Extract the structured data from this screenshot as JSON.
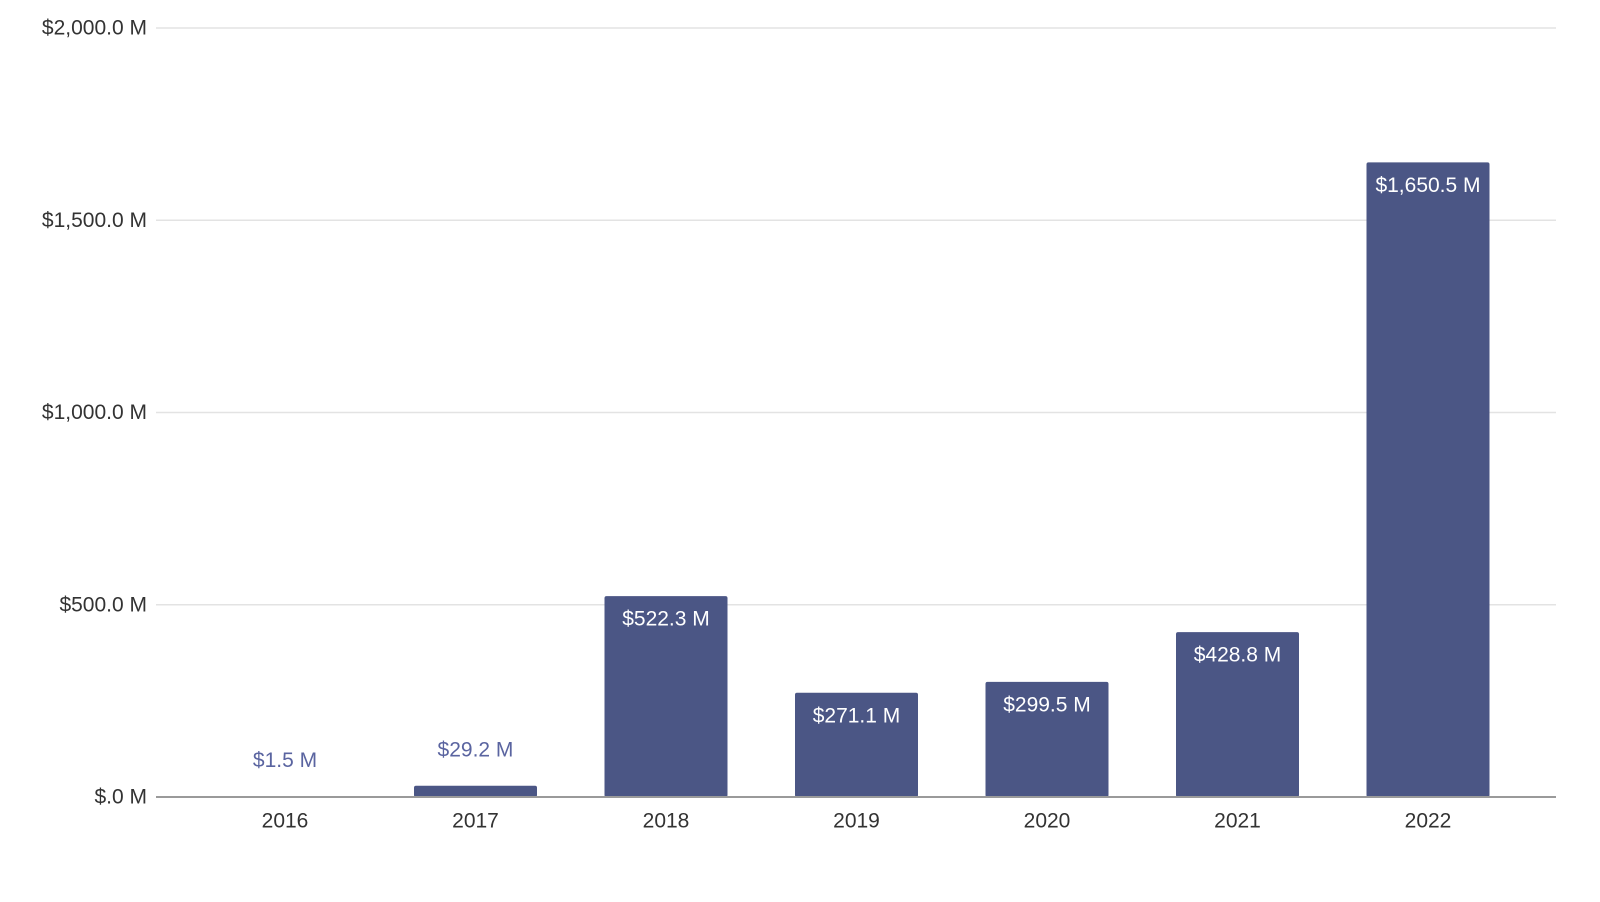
{
  "chart_data": {
    "type": "bar",
    "title": "",
    "xlabel": "",
    "ylabel": "",
    "categories": [
      "2016",
      "2017",
      "2018",
      "2019",
      "2020",
      "2021",
      "2022"
    ],
    "values": [
      1.5,
      29.2,
      522.3,
      271.1,
      299.5,
      428.8,
      1650.5
    ],
    "data_labels": [
      "$1.5 M",
      "$29.2 M",
      "$522.3 M",
      "$271.1 M",
      "$299.5 M",
      "$428.8 M",
      "$1,650.5 M"
    ],
    "ylim": [
      0,
      2000
    ],
    "y_ticks": [
      0,
      500,
      1000,
      1500,
      2000
    ],
    "y_tick_labels": [
      "$.0 M",
      "$500.0 M",
      "$1,000.0 M",
      "$1,500.0 M",
      "$2,000.0 M"
    ],
    "grid": true,
    "legend": "none",
    "colors": {
      "bar": "#4b5685",
      "label_inside": "#ffffff",
      "label_outside": "#5a64a0",
      "gridline": "#e3e3e3",
      "baseline": "#9a9a9a",
      "tick_text": "#333333"
    }
  }
}
